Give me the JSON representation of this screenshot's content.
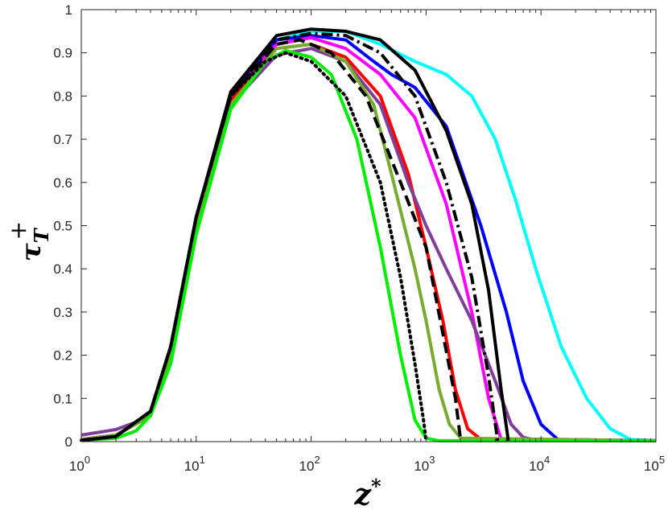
{
  "chart_data": {
    "type": "line",
    "xscale": "log",
    "xlim": [
      1,
      100000
    ],
    "ylim": [
      0,
      1
    ],
    "grid": false,
    "legend": "none",
    "xlabel": "z*",
    "ylabel": "τ_T^+",
    "xticks": [
      {
        "base": "10",
        "exp": "0"
      },
      {
        "base": "10",
        "exp": "1"
      },
      {
        "base": "10",
        "exp": "2"
      },
      {
        "base": "10",
        "exp": "3"
      },
      {
        "base": "10",
        "exp": "4"
      },
      {
        "base": "10",
        "exp": "5"
      }
    ],
    "yticks": [
      "0",
      "0.1",
      "0.2",
      "0.3",
      "0.4",
      "0.5",
      "0.6",
      "0.7",
      "0.8",
      "0.9",
      "1"
    ],
    "series": [
      {
        "color": "#00ffff",
        "style": "solid",
        "points": [
          [
            1,
            0.005
          ],
          [
            2,
            0.015
          ],
          [
            4,
            0.06
          ],
          [
            6,
            0.2
          ],
          [
            10,
            0.5
          ],
          [
            20,
            0.8
          ],
          [
            50,
            0.93
          ],
          [
            100,
            0.95
          ],
          [
            200,
            0.95
          ],
          [
            400,
            0.92
          ],
          [
            800,
            0.88
          ],
          [
            1500,
            0.85
          ],
          [
            2500,
            0.8
          ],
          [
            4000,
            0.7
          ],
          [
            6000,
            0.56
          ],
          [
            9000,
            0.4
          ],
          [
            15000,
            0.22
          ],
          [
            25000,
            0.1
          ],
          [
            40000,
            0.03
          ],
          [
            60000,
            0.005
          ],
          [
            100000,
            0.002
          ]
        ]
      },
      {
        "color": "#0000ff",
        "style": "solid",
        "points": [
          [
            1,
            0.005
          ],
          [
            2,
            0.015
          ],
          [
            4,
            0.06
          ],
          [
            6,
            0.2
          ],
          [
            10,
            0.5
          ],
          [
            20,
            0.8
          ],
          [
            50,
            0.93
          ],
          [
            100,
            0.94
          ],
          [
            200,
            0.93
          ],
          [
            350,
            0.88
          ],
          [
            500,
            0.85
          ],
          [
            800,
            0.82
          ],
          [
            1500,
            0.73
          ],
          [
            3000,
            0.5
          ],
          [
            5000,
            0.3
          ],
          [
            7000,
            0.14
          ],
          [
            10000,
            0.04
          ],
          [
            14000,
            0.005
          ],
          [
            100000,
            0.002
          ]
        ]
      },
      {
        "color": "#ff00ff",
        "style": "solid",
        "points": [
          [
            1,
            0.005
          ],
          [
            2,
            0.015
          ],
          [
            4,
            0.06
          ],
          [
            6,
            0.2
          ],
          [
            10,
            0.5
          ],
          [
            20,
            0.8
          ],
          [
            50,
            0.92
          ],
          [
            100,
            0.935
          ],
          [
            200,
            0.91
          ],
          [
            400,
            0.85
          ],
          [
            800,
            0.75
          ],
          [
            1500,
            0.55
          ],
          [
            2500,
            0.3
          ],
          [
            3500,
            0.1
          ],
          [
            4500,
            0.005
          ],
          [
            100000,
            0.002
          ]
        ]
      },
      {
        "color": "#ff0000",
        "style": "solid",
        "points": [
          [
            1,
            0.005
          ],
          [
            2,
            0.015
          ],
          [
            4,
            0.06
          ],
          [
            6,
            0.2
          ],
          [
            10,
            0.5
          ],
          [
            20,
            0.79
          ],
          [
            50,
            0.91
          ],
          [
            100,
            0.92
          ],
          [
            200,
            0.89
          ],
          [
            400,
            0.8
          ],
          [
            700,
            0.62
          ],
          [
            1000,
            0.45
          ],
          [
            1400,
            0.28
          ],
          [
            1800,
            0.12
          ],
          [
            2300,
            0.03
          ],
          [
            3000,
            0.005
          ],
          [
            100000,
            0.002
          ]
        ]
      },
      {
        "color": "#7f3f98",
        "style": "solid",
        "points": [
          [
            1,
            0.015
          ],
          [
            2,
            0.028
          ],
          [
            3,
            0.045
          ],
          [
            4,
            0.07
          ],
          [
            6,
            0.2
          ],
          [
            10,
            0.5
          ],
          [
            20,
            0.78
          ],
          [
            50,
            0.895
          ],
          [
            100,
            0.91
          ],
          [
            200,
            0.88
          ],
          [
            400,
            0.78
          ],
          [
            700,
            0.6
          ],
          [
            1000,
            0.5
          ],
          [
            1500,
            0.4
          ],
          [
            2500,
            0.28
          ],
          [
            4000,
            0.14
          ],
          [
            5500,
            0.04
          ],
          [
            7000,
            0.01
          ],
          [
            9000,
            0.003
          ],
          [
            100000,
            0.002
          ]
        ]
      },
      {
        "color": "#77ac30",
        "style": "solid",
        "points": [
          [
            1,
            0.005
          ],
          [
            2,
            0.015
          ],
          [
            4,
            0.06
          ],
          [
            6,
            0.2
          ],
          [
            10,
            0.5
          ],
          [
            20,
            0.78
          ],
          [
            50,
            0.91
          ],
          [
            100,
            0.92
          ],
          [
            200,
            0.88
          ],
          [
            350,
            0.78
          ],
          [
            500,
            0.62
          ],
          [
            800,
            0.4
          ],
          [
            1000,
            0.28
          ],
          [
            1300,
            0.12
          ],
          [
            1600,
            0.04
          ],
          [
            2000,
            0.008
          ],
          [
            100000,
            0.002
          ]
        ]
      },
      {
        "color": "#00ee00",
        "style": "solid",
        "points": [
          [
            1,
            0.003
          ],
          [
            2,
            0.008
          ],
          [
            3,
            0.025
          ],
          [
            4,
            0.06
          ],
          [
            6,
            0.18
          ],
          [
            10,
            0.48
          ],
          [
            20,
            0.77
          ],
          [
            40,
            0.88
          ],
          [
            60,
            0.905
          ],
          [
            100,
            0.89
          ],
          [
            150,
            0.85
          ],
          [
            250,
            0.7
          ],
          [
            400,
            0.45
          ],
          [
            600,
            0.2
          ],
          [
            800,
            0.05
          ],
          [
            1000,
            0.008
          ],
          [
            1300,
            0.002
          ],
          [
            100000,
            0.002
          ]
        ]
      },
      {
        "color": "#000000",
        "style": "solid",
        "points": [
          [
            1,
            0.003
          ],
          [
            2,
            0.012
          ],
          [
            4,
            0.07
          ],
          [
            6,
            0.22
          ],
          [
            10,
            0.52
          ],
          [
            20,
            0.81
          ],
          [
            50,
            0.94
          ],
          [
            100,
            0.955
          ],
          [
            200,
            0.95
          ],
          [
            400,
            0.93
          ],
          [
            800,
            0.86
          ],
          [
            1500,
            0.72
          ],
          [
            2500,
            0.55
          ],
          [
            3500,
            0.35
          ],
          [
            4500,
            0.12
          ],
          [
            5200,
            0.002
          ]
        ]
      },
      {
        "color": "#000000",
        "style": "dashdot",
        "points": [
          [
            1,
            0.003
          ],
          [
            2,
            0.012
          ],
          [
            4,
            0.07
          ],
          [
            6,
            0.22
          ],
          [
            10,
            0.52
          ],
          [
            20,
            0.8
          ],
          [
            50,
            0.93
          ],
          [
            100,
            0.945
          ],
          [
            200,
            0.94
          ],
          [
            400,
            0.9
          ],
          [
            800,
            0.8
          ],
          [
            1500,
            0.6
          ],
          [
            2500,
            0.38
          ],
          [
            3500,
            0.15
          ],
          [
            4200,
            0.002
          ]
        ]
      },
      {
        "color": "#000000",
        "style": "dashed",
        "points": [
          [
            1,
            0.003
          ],
          [
            2,
            0.012
          ],
          [
            4,
            0.07
          ],
          [
            6,
            0.22
          ],
          [
            10,
            0.52
          ],
          [
            20,
            0.8
          ],
          [
            50,
            0.92
          ],
          [
            80,
            0.93
          ],
          [
            150,
            0.9
          ],
          [
            300,
            0.8
          ],
          [
            600,
            0.6
          ],
          [
            1000,
            0.45
          ],
          [
            1400,
            0.25
          ],
          [
            1800,
            0.1
          ],
          [
            2000,
            0.002
          ]
        ]
      },
      {
        "color": "#000000",
        "style": "dotted",
        "points": [
          [
            1,
            0.003
          ],
          [
            2,
            0.012
          ],
          [
            4,
            0.07
          ],
          [
            6,
            0.22
          ],
          [
            10,
            0.52
          ],
          [
            20,
            0.8
          ],
          [
            40,
            0.88
          ],
          [
            60,
            0.9
          ],
          [
            100,
            0.88
          ],
          [
            200,
            0.8
          ],
          [
            400,
            0.6
          ],
          [
            600,
            0.38
          ],
          [
            800,
            0.18
          ],
          [
            950,
            0.05
          ],
          [
            1000,
            0.002
          ]
        ]
      }
    ]
  }
}
